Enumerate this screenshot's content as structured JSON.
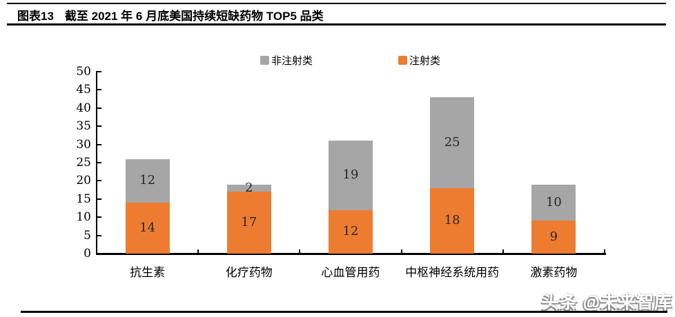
{
  "header": {
    "figure_label": "图表13",
    "title": "截至 2021 年 6 月底美国持续短缺药物 TOP5 品类"
  },
  "legend": {
    "items": [
      {
        "label": "非注射类",
        "color": "#A6A6A6"
      },
      {
        "label": "注射类",
        "color": "#ED7C31"
      }
    ]
  },
  "chart_data": {
    "type": "bar",
    "stacked": true,
    "title": "截至 2021 年 6 月底美国持续短缺药物 TOP5 品类",
    "categories": [
      "抗生素",
      "化疗药物",
      "心血管用药",
      "中枢神经系统用药",
      "激素药物"
    ],
    "series": [
      {
        "name": "注射类",
        "color": "#ED7C31",
        "values": [
          14,
          17,
          12,
          18,
          9
        ]
      },
      {
        "name": "非注射类",
        "color": "#A6A6A6",
        "values": [
          12,
          2,
          19,
          25,
          10
        ]
      }
    ],
    "totals": [
      26,
      19,
      31,
      43,
      19
    ],
    "xlabel": "",
    "ylabel": "",
    "ylim": [
      0,
      50
    ],
    "yticks": [
      0,
      5,
      10,
      15,
      20,
      25,
      30,
      35,
      40,
      45,
      50
    ],
    "grid": false,
    "legend_position": "top",
    "value_label_color": "#262626"
  },
  "watermark": {
    "text": "头条 @未来智库"
  }
}
